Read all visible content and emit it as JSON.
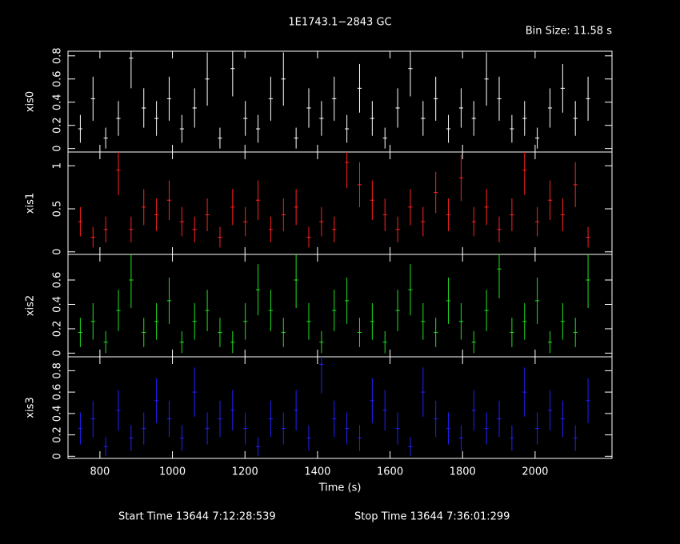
{
  "header": {
    "title": "1E1743.1−2843 GC",
    "bin_size": "Bin Size: 11.58 s"
  },
  "x_label": "Time (s)",
  "footer": {
    "start_time": "Start Time 13644  7:12:28:539",
    "stop_time": "Stop Time 13644  7:36:01:299"
  },
  "chart_data": [
    {
      "type": "errorbar",
      "y_label": "xis0",
      "color": "#ffffff",
      "xlim": [
        712,
        2212
      ],
      "ylim": [
        -0.03,
        0.84
      ],
      "yticks": [
        0,
        0.2,
        0.4,
        0.6,
        0.8
      ],
      "x": [
        746,
        781,
        816,
        851,
        886,
        921,
        956,
        991,
        1026,
        1061,
        1096,
        1131,
        1166,
        1201,
        1236,
        1271,
        1306,
        1341,
        1376,
        1411,
        1446,
        1481,
        1516,
        1551,
        1586,
        1621,
        1656,
        1691,
        1726,
        1761,
        1796,
        1831,
        1866,
        1901,
        1936,
        1971,
        2006,
        2041,
        2076,
        2111,
        2146
      ],
      "values": [
        0.17,
        0.43,
        0.09,
        0.26,
        0.78,
        0.35,
        0.26,
        0.43,
        0.17,
        0.35,
        0.6,
        0.09,
        0.69,
        0.26,
        0.17,
        0.43,
        0.6,
        0.09,
        0.35,
        0.26,
        0.43,
        0.17,
        0.52,
        0.26,
        0.09,
        0.35,
        0.69,
        0.26,
        0.43,
        0.17,
        0.35,
        0.26,
        0.6,
        0.43,
        0.17,
        0.26,
        0.09,
        0.35,
        0.52,
        0.26,
        0.43
      ],
      "errors": [
        0.12,
        0.19,
        0.09,
        0.15,
        0.26,
        0.17,
        0.15,
        0.19,
        0.12,
        0.17,
        0.23,
        0.09,
        0.24,
        0.15,
        0.12,
        0.19,
        0.23,
        0.09,
        0.17,
        0.15,
        0.19,
        0.12,
        0.21,
        0.15,
        0.09,
        0.17,
        0.24,
        0.15,
        0.19,
        0.12,
        0.17,
        0.15,
        0.23,
        0.19,
        0.12,
        0.15,
        0.09,
        0.17,
        0.21,
        0.15,
        0.19
      ]
    },
    {
      "type": "errorbar",
      "y_label": "xis1",
      "color": "#ff2020",
      "xlim": [
        712,
        2212
      ],
      "ylim": [
        -0.03,
        1.16
      ],
      "yticks": [
        0,
        0.5,
        1
      ],
      "x": [
        746,
        781,
        816,
        851,
        886,
        921,
        956,
        991,
        1026,
        1061,
        1096,
        1131,
        1166,
        1201,
        1236,
        1271,
        1306,
        1341,
        1376,
        1411,
        1446,
        1481,
        1516,
        1551,
        1586,
        1621,
        1656,
        1691,
        1726,
        1761,
        1796,
        1831,
        1866,
        1901,
        1936,
        1971,
        2006,
        2041,
        2076,
        2111,
        2146
      ],
      "values": [
        0.35,
        0.17,
        0.26,
        0.95,
        0.26,
        0.52,
        0.43,
        0.6,
        0.35,
        0.26,
        0.43,
        0.17,
        0.52,
        0.35,
        0.6,
        0.26,
        0.43,
        0.52,
        0.17,
        0.35,
        0.26,
        1.04,
        0.78,
        0.6,
        0.43,
        0.26,
        0.52,
        0.35,
        0.69,
        0.43,
        0.86,
        0.35,
        0.52,
        0.26,
        0.43,
        0.95,
        0.35,
        0.6,
        0.43,
        0.78,
        0.17
      ],
      "errors": [
        0.17,
        0.12,
        0.15,
        0.29,
        0.15,
        0.21,
        0.19,
        0.23,
        0.17,
        0.15,
        0.19,
        0.12,
        0.21,
        0.17,
        0.23,
        0.15,
        0.19,
        0.21,
        0.12,
        0.17,
        0.15,
        0.3,
        0.26,
        0.23,
        0.19,
        0.15,
        0.21,
        0.17,
        0.24,
        0.19,
        0.27,
        0.17,
        0.21,
        0.15,
        0.19,
        0.29,
        0.17,
        0.23,
        0.19,
        0.26,
        0.12
      ]
    },
    {
      "type": "errorbar",
      "y_label": "xis2",
      "color": "#20e020",
      "xlim": [
        712,
        2212
      ],
      "ylim": [
        -0.03,
        0.81
      ],
      "yticks": [
        0,
        0.2,
        0.4,
        0.6
      ],
      "x": [
        746,
        781,
        816,
        851,
        886,
        921,
        956,
        991,
        1026,
        1061,
        1096,
        1131,
        1166,
        1201,
        1236,
        1271,
        1306,
        1341,
        1376,
        1411,
        1446,
        1481,
        1516,
        1551,
        1586,
        1621,
        1656,
        1691,
        1726,
        1761,
        1796,
        1831,
        1866,
        1901,
        1936,
        1971,
        2006,
        2041,
        2076,
        2111,
        2146
      ],
      "values": [
        0.17,
        0.26,
        0.09,
        0.35,
        0.6,
        0.17,
        0.26,
        0.43,
        0.09,
        0.26,
        0.35,
        0.17,
        0.09,
        0.26,
        0.52,
        0.35,
        0.17,
        0.6,
        0.26,
        0.09,
        0.35,
        0.43,
        0.17,
        0.26,
        0.09,
        0.35,
        0.52,
        0.26,
        0.17,
        0.43,
        0.26,
        0.09,
        0.35,
        0.69,
        0.17,
        0.26,
        0.43,
        0.09,
        0.26,
        0.17,
        0.6
      ],
      "errors": [
        0.12,
        0.15,
        0.09,
        0.17,
        0.23,
        0.12,
        0.15,
        0.19,
        0.09,
        0.15,
        0.17,
        0.12,
        0.09,
        0.15,
        0.21,
        0.17,
        0.12,
        0.23,
        0.15,
        0.09,
        0.17,
        0.19,
        0.12,
        0.15,
        0.09,
        0.17,
        0.21,
        0.15,
        0.12,
        0.19,
        0.15,
        0.09,
        0.17,
        0.24,
        0.12,
        0.15,
        0.19,
        0.09,
        0.15,
        0.12,
        0.23
      ]
    },
    {
      "type": "errorbar",
      "y_label": "xis3",
      "color": "#2020ff",
      "xlim": [
        712,
        2212
      ],
      "ylim": [
        -0.02,
        0.93
      ],
      "yticks": [
        0,
        0.2,
        0.4,
        0.6,
        0.8
      ],
      "xticks": [
        800,
        1000,
        1200,
        1400,
        1600,
        1800,
        2000
      ],
      "x": [
        746,
        781,
        816,
        851,
        886,
        921,
        956,
        991,
        1026,
        1061,
        1096,
        1131,
        1166,
        1201,
        1236,
        1271,
        1306,
        1341,
        1376,
        1411,
        1446,
        1481,
        1516,
        1551,
        1586,
        1621,
        1656,
        1691,
        1726,
        1761,
        1796,
        1831,
        1866,
        1901,
        1936,
        1971,
        2006,
        2041,
        2076,
        2111,
        2146
      ],
      "values": [
        0.26,
        0.35,
        0.09,
        0.43,
        0.17,
        0.26,
        0.52,
        0.35,
        0.17,
        0.6,
        0.26,
        0.35,
        0.43,
        0.26,
        0.09,
        0.35,
        0.26,
        0.43,
        0.17,
        0.86,
        0.35,
        0.26,
        0.17,
        0.52,
        0.43,
        0.26,
        0.09,
        0.6,
        0.35,
        0.26,
        0.17,
        0.43,
        0.26,
        0.35,
        0.17,
        0.6,
        0.26,
        0.43,
        0.35,
        0.17,
        0.52
      ],
      "errors": [
        0.15,
        0.17,
        0.09,
        0.19,
        0.12,
        0.15,
        0.21,
        0.17,
        0.12,
        0.23,
        0.15,
        0.17,
        0.19,
        0.15,
        0.09,
        0.17,
        0.15,
        0.19,
        0.12,
        0.27,
        0.17,
        0.15,
        0.12,
        0.21,
        0.19,
        0.15,
        0.09,
        0.23,
        0.17,
        0.15,
        0.12,
        0.19,
        0.15,
        0.17,
        0.12,
        0.23,
        0.15,
        0.19,
        0.17,
        0.12,
        0.21
      ]
    }
  ]
}
